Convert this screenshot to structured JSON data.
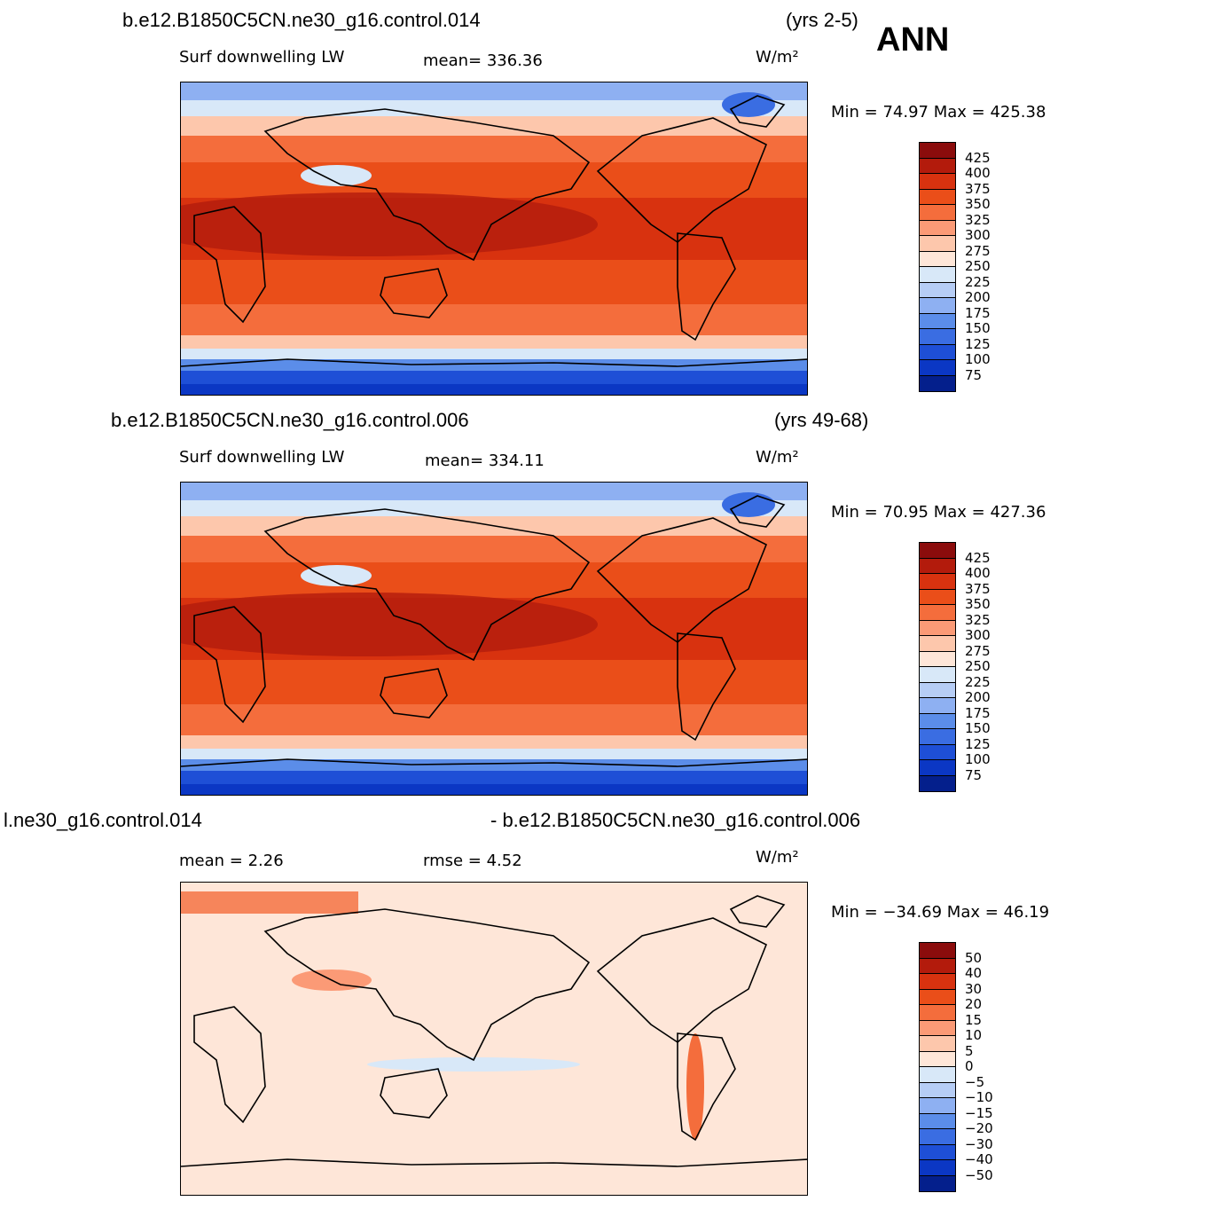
{
  "header": {
    "season": "ANN"
  },
  "panels": [
    {
      "case_name": "b.e12.B1850C5CN.ne30_g16.control.014",
      "years": "(yrs 2-5)",
      "variable": "Surf downwelling LW",
      "mean_text": "mean= 336.36",
      "units": "W/m²",
      "minmax": "Min =   74.97  Max  = 425.38",
      "field": "absolute"
    },
    {
      "case_name": "b.e12.B1850C5CN.ne30_g16.control.006",
      "years": "(yrs 49-68)",
      "variable": "Surf downwelling LW",
      "mean_text": "mean= 334.11",
      "units": "W/m²",
      "minmax": "Min =   70.95  Max  = 427.36",
      "field": "absolute"
    },
    {
      "left_title": "l.ne30_g16.control.014",
      "right_title": "- b.e12.B1850C5CN.ne30_g16.control.006",
      "mean_text": "mean =    2.26",
      "rmse_text": "rmse =    4.52",
      "units": "W/m²",
      "minmax": "Min = −34.69  Max  =   46.19",
      "field": "difference"
    }
  ],
  "colorbars": {
    "absolute": {
      "labels": [
        "425",
        "400",
        "375",
        "350",
        "325",
        "300",
        "275",
        "250",
        "225",
        "200",
        "175",
        "150",
        "125",
        "100",
        "75"
      ],
      "colors": [
        "#8b0c0c",
        "#b31b0c",
        "#d8320f",
        "#ea4e19",
        "#f46d3c",
        "#fb9a76",
        "#fdc7ac",
        "#fee6d8",
        "#d8e8f8",
        "#b6cdf5",
        "#8eb0f2",
        "#5b8de9",
        "#3a6de2",
        "#1e4fd6",
        "#0b37c4",
        "#041f8c"
      ]
    },
    "difference": {
      "labels": [
        "50",
        "40",
        "30",
        "20",
        "15",
        "10",
        "5",
        "0",
        "−5",
        "−10",
        "−15",
        "−20",
        "−30",
        "−40",
        "−50"
      ],
      "colors": [
        "#8b0c0c",
        "#b31b0c",
        "#d8320f",
        "#ea4e19",
        "#f46d3c",
        "#fb9a76",
        "#fdc7ac",
        "#fee6d8",
        "#d8e8f8",
        "#b6cdf5",
        "#8eb0f2",
        "#5b8de9",
        "#3a6de2",
        "#1e4fd6",
        "#0b37c4",
        "#041f8c"
      ]
    }
  }
}
